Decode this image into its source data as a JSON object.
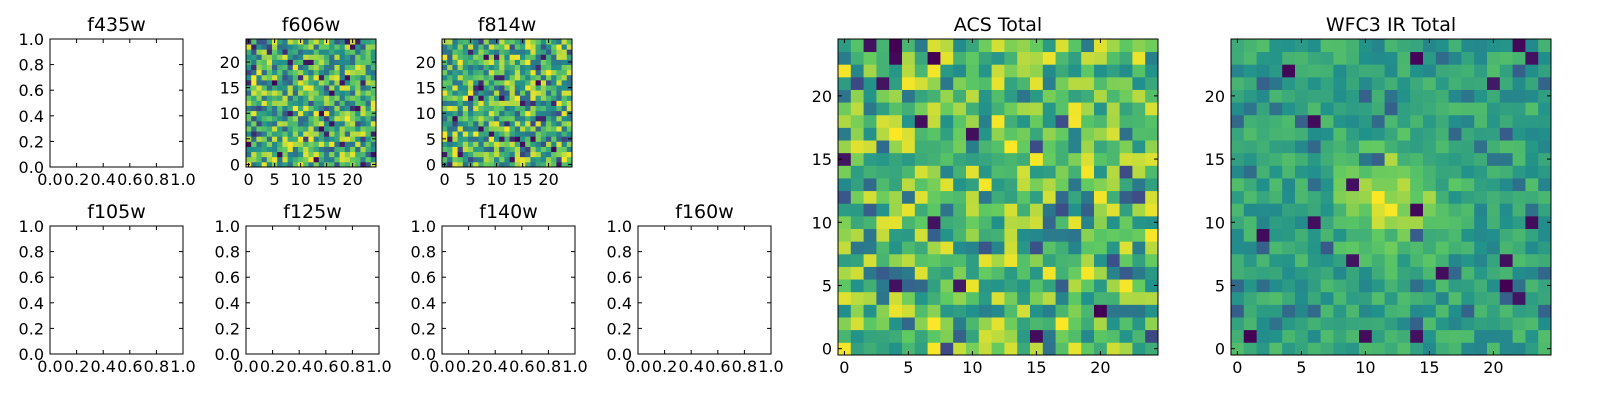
{
  "figure": {
    "background": "#ffffff"
  },
  "colormap": [
    "#440154",
    "#3b528b",
    "#21918c",
    "#5ec962",
    "#fde725"
  ],
  "chart_data": [
    {
      "id": "f435w",
      "type": "line",
      "title": "f435w",
      "empty": true,
      "xlim": [
        0,
        1
      ],
      "ylim": [
        0,
        1
      ],
      "xticks": [
        "0.0",
        "0.2",
        "0.4",
        "0.6",
        "0.8",
        "1.0"
      ],
      "yticks": [
        "0.0",
        "0.2",
        "0.4",
        "0.6",
        "0.8",
        "1.0"
      ]
    },
    {
      "id": "f606w",
      "type": "heatmap",
      "title": "f606w",
      "empty": false,
      "grid_size": 25,
      "seed": 606,
      "contrast": "high",
      "xlim": [
        -0.5,
        24.5
      ],
      "ylim": [
        -0.5,
        24.5
      ],
      "xticks": [
        "0",
        "5",
        "10",
        "15",
        "20"
      ],
      "yticks": [
        "0",
        "5",
        "10",
        "15",
        "20"
      ]
    },
    {
      "id": "f814w",
      "type": "heatmap",
      "title": "f814w",
      "empty": false,
      "grid_size": 25,
      "seed": 814,
      "contrast": "high",
      "xlim": [
        -0.5,
        24.5
      ],
      "ylim": [
        -0.5,
        24.5
      ],
      "xticks": [
        "0",
        "5",
        "10",
        "15",
        "20"
      ],
      "yticks": [
        "0",
        "5",
        "10",
        "15",
        "20"
      ]
    },
    {
      "id": "f105w",
      "type": "line",
      "title": "f105w",
      "empty": true,
      "xlim": [
        0,
        1
      ],
      "ylim": [
        0,
        1
      ],
      "xticks": [
        "0.0",
        "0.2",
        "0.4",
        "0.6",
        "0.8",
        "1.0"
      ],
      "yticks": [
        "0.0",
        "0.2",
        "0.4",
        "0.6",
        "0.8",
        "1.0"
      ]
    },
    {
      "id": "f125w",
      "type": "line",
      "title": "f125w",
      "empty": true,
      "xlim": [
        0,
        1
      ],
      "ylim": [
        0,
        1
      ],
      "xticks": [
        "0.0",
        "0.2",
        "0.4",
        "0.6",
        "0.8",
        "1.0"
      ],
      "yticks": [
        "0.0",
        "0.2",
        "0.4",
        "0.6",
        "0.8",
        "1.0"
      ]
    },
    {
      "id": "f140w",
      "type": "line",
      "title": "f140w",
      "empty": true,
      "xlim": [
        0,
        1
      ],
      "ylim": [
        0,
        1
      ],
      "xticks": [
        "0.0",
        "0.2",
        "0.4",
        "0.6",
        "0.8",
        "1.0"
      ],
      "yticks": [
        "0.0",
        "0.2",
        "0.4",
        "0.6",
        "0.8",
        "1.0"
      ]
    },
    {
      "id": "f160w",
      "type": "line",
      "title": "f160w",
      "empty": true,
      "xlim": [
        0,
        1
      ],
      "ylim": [
        0,
        1
      ],
      "xticks": [
        "0.0",
        "0.2",
        "0.4",
        "0.6",
        "0.8",
        "1.0"
      ],
      "yticks": [
        "0.0",
        "0.2",
        "0.4",
        "0.6",
        "0.8",
        "1.0"
      ]
    },
    {
      "id": "acs-total",
      "type": "heatmap",
      "title": "ACS Total",
      "empty": false,
      "grid_size": 25,
      "seed": 1701,
      "contrast": "medium",
      "xlim": [
        -0.5,
        24.5
      ],
      "ylim": [
        -0.5,
        24.5
      ],
      "xticks": [
        "0",
        "5",
        "10",
        "15",
        "20"
      ],
      "yticks": [
        "0",
        "5",
        "10",
        "15",
        "20"
      ]
    },
    {
      "id": "wfc3-ir-total",
      "type": "heatmap",
      "title": "WFC3 IR Total",
      "empty": false,
      "grid_size": 25,
      "seed": 3010,
      "contrast": "smooth",
      "bright_center": [
        12,
        12
      ],
      "xlim": [
        -0.5,
        24.5
      ],
      "ylim": [
        -0.5,
        24.5
      ],
      "xticks": [
        "0",
        "5",
        "10",
        "15",
        "20"
      ],
      "yticks": [
        "0",
        "5",
        "10",
        "15",
        "20"
      ]
    }
  ]
}
